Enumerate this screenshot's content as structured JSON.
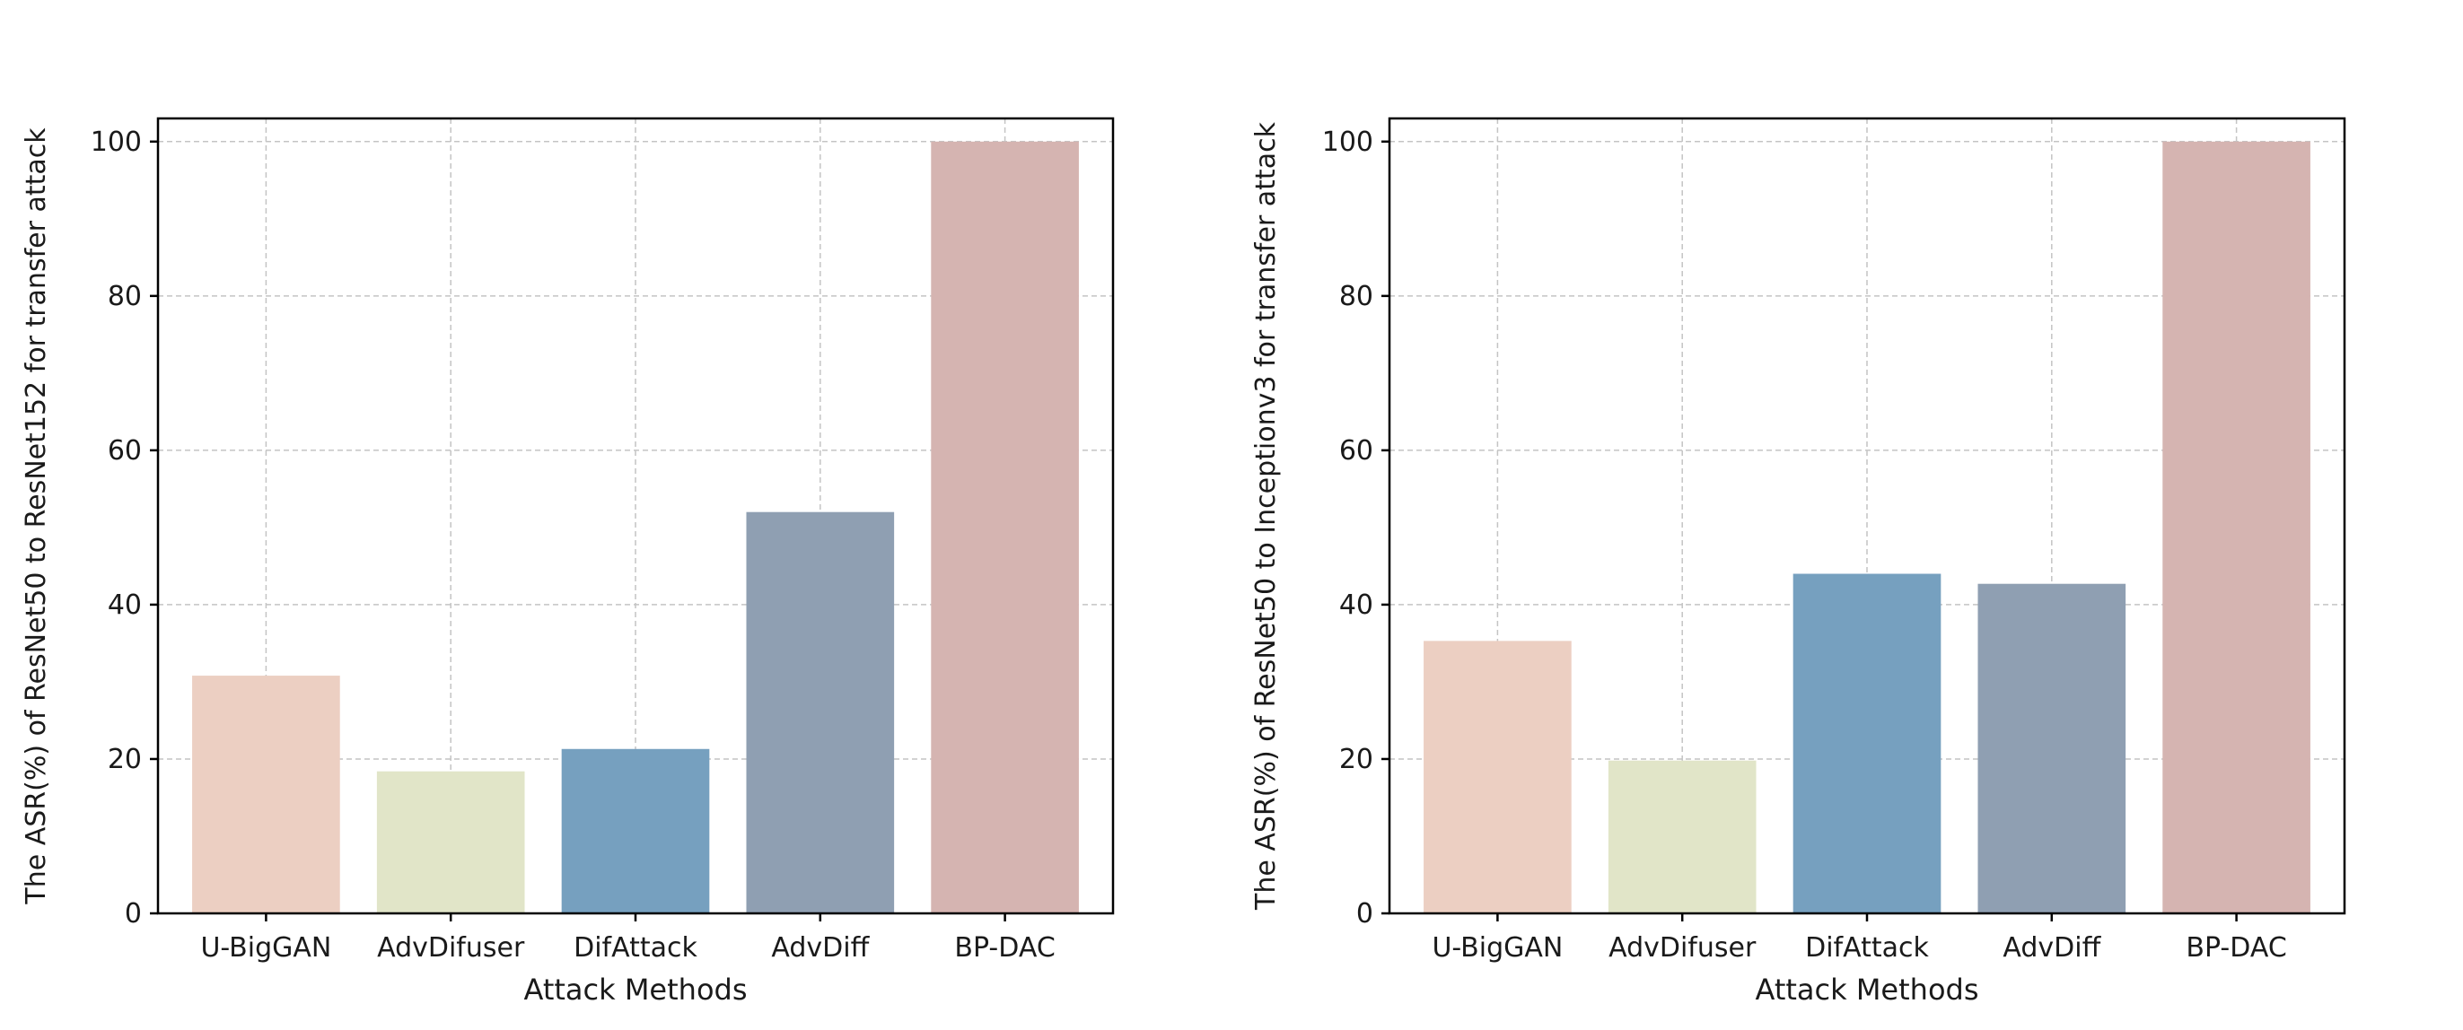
{
  "chart_data": [
    {
      "type": "bar",
      "categories": [
        "U-BigGAN",
        "AdvDifuser",
        "DifAttack",
        "AdvDiff",
        "BP-DAC"
      ],
      "values": [
        30.8,
        18.4,
        21.3,
        52.0,
        100.0
      ],
      "colors": [
        "#eccfc2",
        "#e1e5c8",
        "#76a0bf",
        "#8f9fb2",
        "#d5b4b1"
      ],
      "title": "",
      "xlabel": "Attack Methods",
      "ylabel": "The ASR(%) of ResNet50 to ResNet152 for transfer attack",
      "ylim": [
        0,
        103
      ],
      "yticks": [
        "0",
        "20",
        "40",
        "60",
        "80",
        "100"
      ],
      "grid": true
    },
    {
      "type": "bar",
      "categories": [
        "U-BigGAN",
        "AdvDifuser",
        "DifAttack",
        "AdvDiff",
        "BP-DAC"
      ],
      "values": [
        35.3,
        19.8,
        44.0,
        42.7,
        100.0
      ],
      "colors": [
        "#eccfc2",
        "#e1e5c8",
        "#76a0bf",
        "#8f9fb2",
        "#d5b4b1"
      ],
      "title": "",
      "xlabel": "Attack Methods",
      "ylabel": "The ASR(%) of ResNet50 to Inceptionv3 for transfer attack",
      "ylim": [
        0,
        103
      ],
      "yticks": [
        "0",
        "20",
        "40",
        "60",
        "80",
        "100"
      ],
      "grid": true
    }
  ]
}
